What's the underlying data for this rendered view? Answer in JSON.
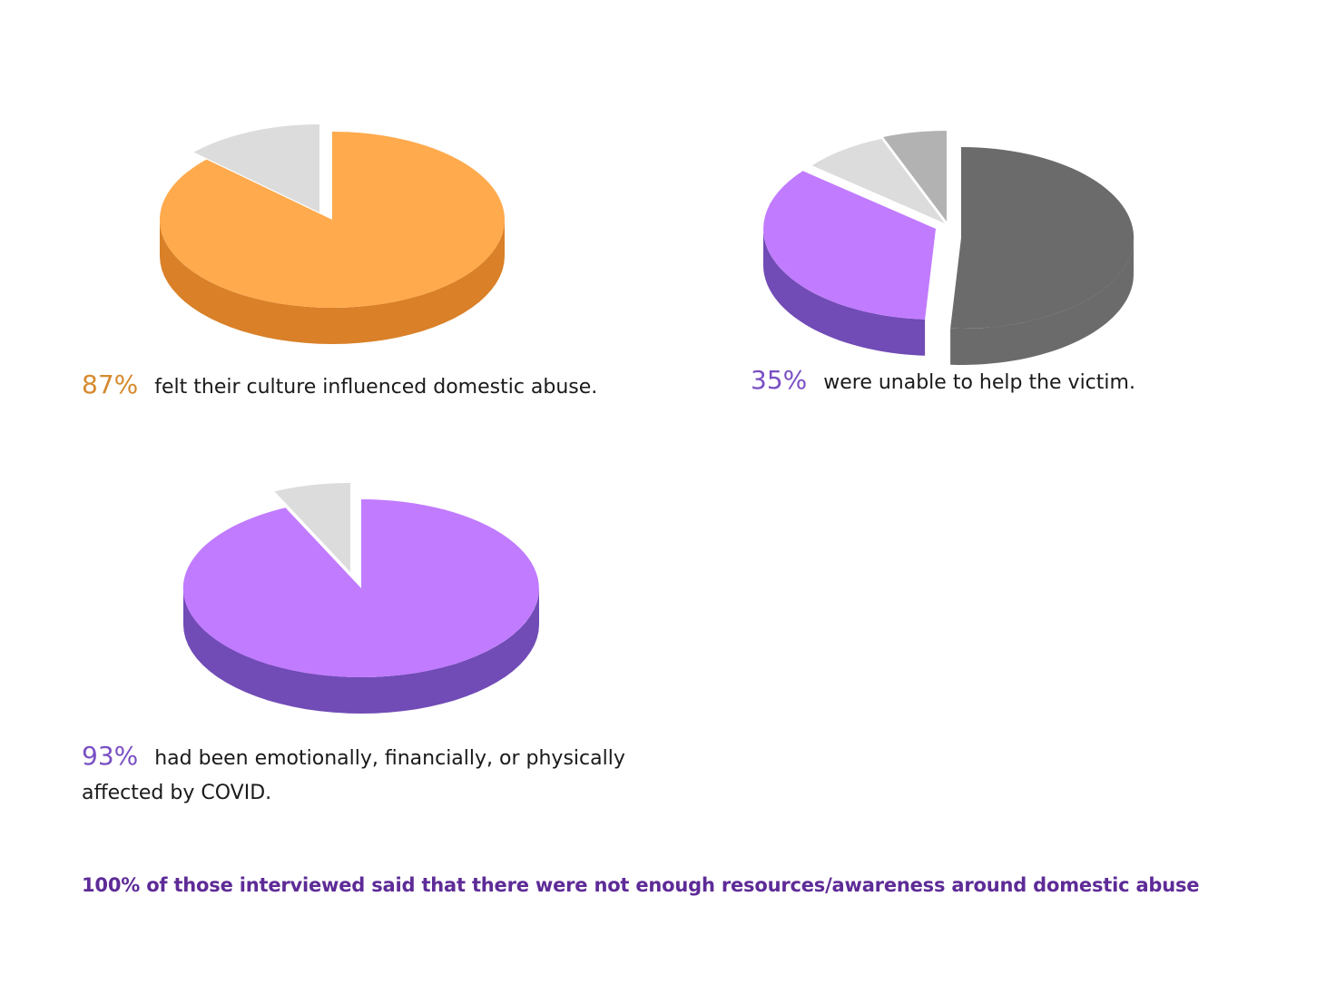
{
  "charts": [
    {
      "chart_data": {
        "type": "pie",
        "slices": [
          {
            "value": 87,
            "color": "#ffaa4d",
            "side": "#d98028"
          },
          {
            "value": 13,
            "color": "#dcdcdc",
            "side": "#8a8a8a"
          }
        ]
      },
      "caption": {
        "percent": "87%",
        "percent_color": "#d58a2e",
        "text": "felt their culture influenced domestic abuse."
      }
    },
    {
      "chart_data": {
        "type": "pie",
        "slices": [
          {
            "value": 51,
            "color": "#6b6b6b",
            "side": "#6b6b6b"
          },
          {
            "value": 35,
            "color": "#c17bff",
            "side": "#714bb6"
          },
          {
            "value": 8,
            "color": "#dcdcdc",
            "side": "#a8a8a8"
          },
          {
            "value": 6,
            "color": "#b2b2b2",
            "side": "#8f8f8f"
          }
        ]
      },
      "caption": {
        "percent": "35%",
        "percent_color": "#7a4fc4",
        "text": "were unable to help the victim."
      }
    },
    {
      "chart_data": {
        "type": "pie",
        "slices": [
          {
            "value": 93,
            "color": "#c17bff",
            "side": "#714bb6"
          },
          {
            "value": 7,
            "color": "#dcdcdc",
            "side": "#9a9a9a"
          }
        ]
      },
      "caption": {
        "percent": "93%",
        "percent_color": "#7a4fc4",
        "text": "had been emotionally, financially, or physically affected by COVID."
      }
    }
  ],
  "footnote": "100% of those interviewed said that there were not enough resources/awareness around domestic abuse",
  "colors": {
    "footnote": "#5e2b97",
    "text": "#1a1a1a"
  }
}
